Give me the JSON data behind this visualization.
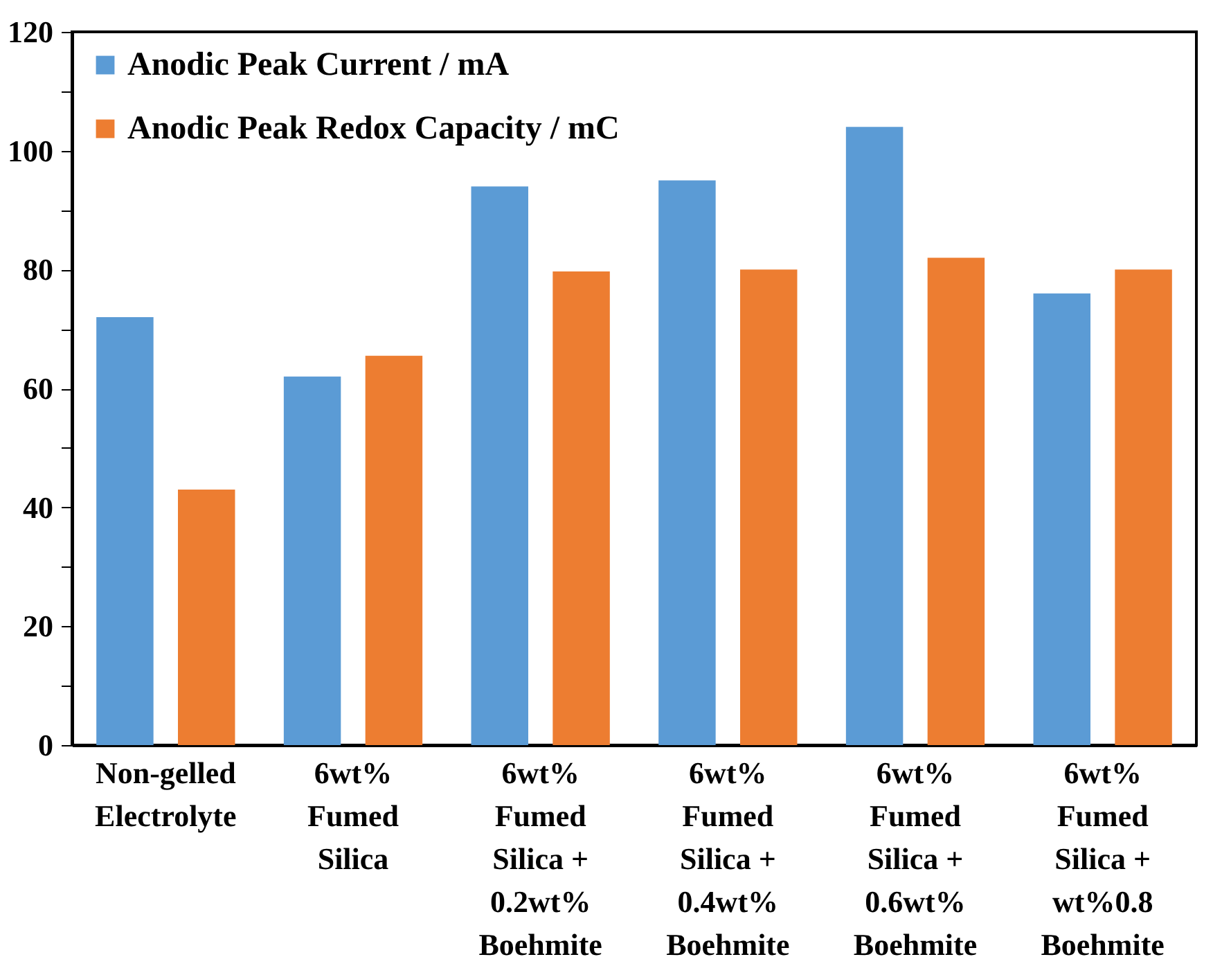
{
  "chart_data": {
    "type": "bar",
    "categories": [
      "Non-gelled\nElectrolyte",
      "6wt%\nFumed\nSilica",
      "6wt%\nFumed\nSilica +\n0.2wt%\nBoehmite",
      "6wt%\nFumed\nSilica +\n0.4wt%\nBoehmite",
      "6wt%\nFumed\nSilica +\n0.6wt%\nBoehmite",
      "6wt%\nFumed\nSilica +\nwt%0.8\nBoehmite"
    ],
    "series": [
      {
        "name": "Anodic Peak Current / mA",
        "color": "#5b9bd5",
        "values": [
          72,
          62,
          94,
          95,
          104,
          76
        ]
      },
      {
        "name": "Anodic Peak Redox Capacity / mC",
        "color": "#ed7d31",
        "values": [
          43,
          65.5,
          79.7,
          80,
          82,
          80
        ]
      }
    ],
    "ylim": [
      0,
      120
    ],
    "yticks": [
      0,
      {
        "value": 10,
        "label": null
      },
      20,
      {
        "value": 30,
        "label": null
      },
      40,
      {
        "value": 50,
        "label": null
      },
      60,
      {
        "value": 70,
        "label": null
      },
      80,
      {
        "value": 90,
        "label": null
      },
      100,
      {
        "value": 110,
        "label": null
      },
      120
    ],
    "grid": false,
    "legend": "top left"
  }
}
